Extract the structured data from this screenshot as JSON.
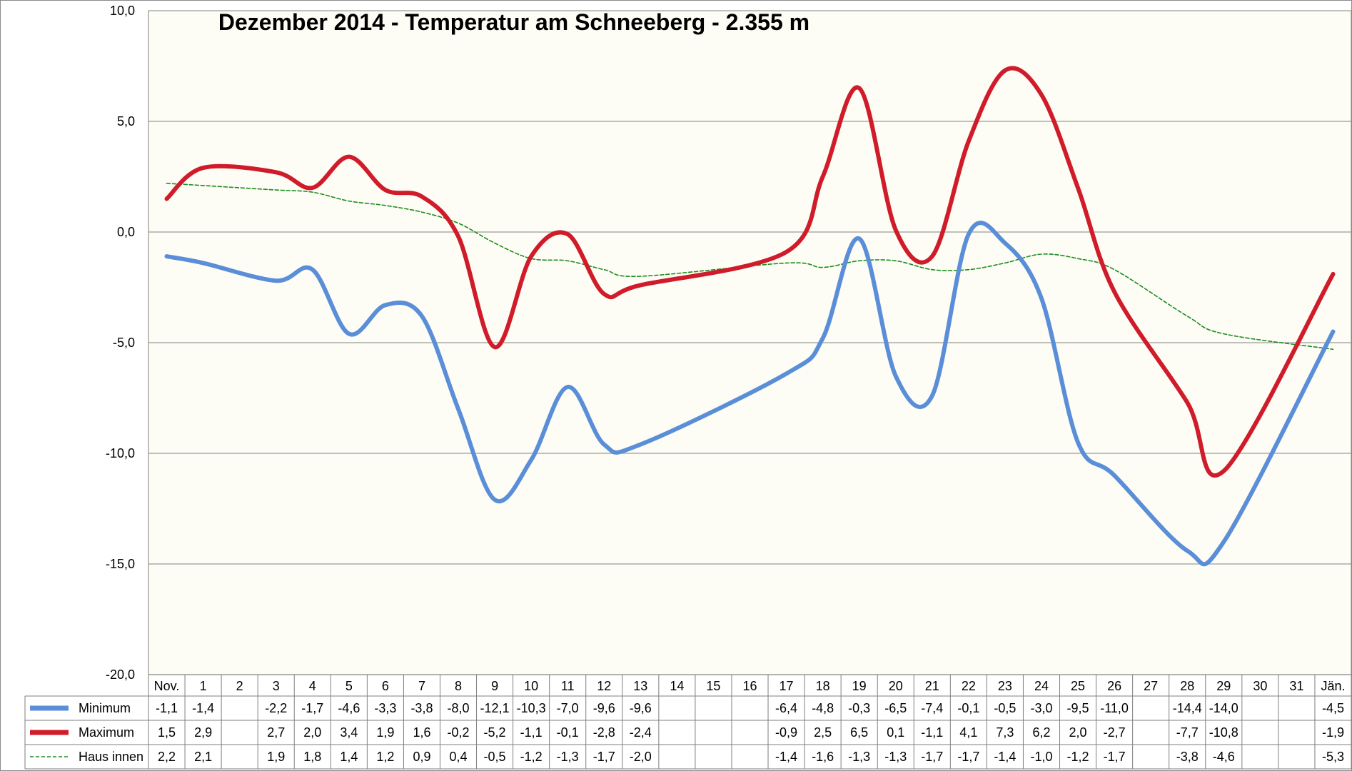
{
  "chart_data": {
    "type": "line",
    "title": "Dezember 2014 - Temperatur am Schneeberg - 2.355 m",
    "categories": [
      "Nov.",
      "1",
      "2",
      "3",
      "4",
      "5",
      "6",
      "7",
      "8",
      "9",
      "10",
      "11",
      "12",
      "13",
      "14",
      "15",
      "16",
      "17",
      "18",
      "19",
      "20",
      "21",
      "22",
      "23",
      "24",
      "25",
      "26",
      "27",
      "28",
      "29",
      "30",
      "31",
      "Jän."
    ],
    "ylim": [
      -20,
      10
    ],
    "yticks": [
      "-20,0",
      "-15,0",
      "-10,0",
      "-5,0",
      "0,0",
      "5,0",
      "10,0"
    ],
    "grid": true,
    "legend": "bottom-left data table",
    "colors": {
      "plot_bg": "#fdfdf5",
      "grid": "#9a9a9a",
      "border": "#7f7f7f"
    },
    "series": [
      {
        "name": "Minimum",
        "color": "#5b8ed8",
        "style": "thick",
        "values": [
          -1.1,
          -1.4,
          null,
          -2.2,
          -1.7,
          -4.6,
          -3.3,
          -3.8,
          -8.0,
          -12.1,
          -10.3,
          -7.0,
          -9.6,
          -9.6,
          null,
          null,
          null,
          -6.4,
          -4.8,
          -0.3,
          -6.5,
          -7.4,
          -0.1,
          -0.5,
          -3.0,
          -9.5,
          -11.0,
          null,
          -14.4,
          -14.0,
          null,
          null,
          -4.5
        ],
        "labels": [
          "-1,1",
          "-1,4",
          "",
          "-2,2",
          "-1,7",
          "-4,6",
          "-3,3",
          "-3,8",
          "-8,0",
          "-12,1",
          "-10,3",
          "-7,0",
          "-9,6",
          "-9,6",
          "",
          "",
          "",
          "-6,4",
          "-4,8",
          "-0,3",
          "-6,5",
          "-7,4",
          "-0,1",
          "-0,5",
          "-3,0",
          "-9,5",
          "-11,0",
          "",
          "-14,4",
          "-14,0",
          "",
          "",
          "-4,5"
        ]
      },
      {
        "name": "Maximum",
        "color": "#d01c2a",
        "style": "thick",
        "values": [
          1.5,
          2.9,
          null,
          2.7,
          2.0,
          3.4,
          1.9,
          1.6,
          -0.2,
          -5.2,
          -1.1,
          -0.1,
          -2.8,
          -2.4,
          null,
          null,
          null,
          -0.9,
          2.5,
          6.5,
          0.1,
          -1.1,
          4.1,
          7.3,
          6.2,
          2.0,
          -2.7,
          null,
          -7.7,
          -10.8,
          null,
          null,
          -1.9
        ],
        "labels": [
          "1,5",
          "2,9",
          "",
          "2,7",
          "2,0",
          "3,4",
          "1,9",
          "1,6",
          "-0,2",
          "-5,2",
          "-1,1",
          "-0,1",
          "-2,8",
          "-2,4",
          "",
          "",
          "",
          "-0,9",
          "2,5",
          "6,5",
          "0,1",
          "-1,1",
          "4,1",
          "7,3",
          "6,2",
          "2,0",
          "-2,7",
          "",
          "-7,7",
          "-10,8",
          "",
          "",
          "-1,9"
        ]
      },
      {
        "name": "Haus innen",
        "color": "#1e8c1e",
        "style": "dashed",
        "values": [
          2.2,
          2.1,
          null,
          1.9,
          1.8,
          1.4,
          1.2,
          0.9,
          0.4,
          -0.5,
          -1.2,
          -1.3,
          -1.7,
          -2.0,
          null,
          null,
          null,
          -1.4,
          -1.6,
          -1.3,
          -1.3,
          -1.7,
          -1.7,
          -1.4,
          -1.0,
          -1.2,
          -1.7,
          null,
          -3.8,
          -4.6,
          null,
          null,
          -5.3
        ],
        "labels": [
          "2,2",
          "2,1",
          "",
          "1,9",
          "1,8",
          "1,4",
          "1,2",
          "0,9",
          "0,4",
          "-0,5",
          "-1,2",
          "-1,3",
          "-1,7",
          "-2,0",
          "",
          "",
          "",
          "-1,4",
          "-1,6",
          "-1,3",
          "-1,3",
          "-1,7",
          "-1,7",
          "-1,4",
          "-1,0",
          "-1,2",
          "-1,7",
          "",
          "-3,8",
          "-4,6",
          "",
          "",
          "-5,3"
        ]
      }
    ]
  }
}
